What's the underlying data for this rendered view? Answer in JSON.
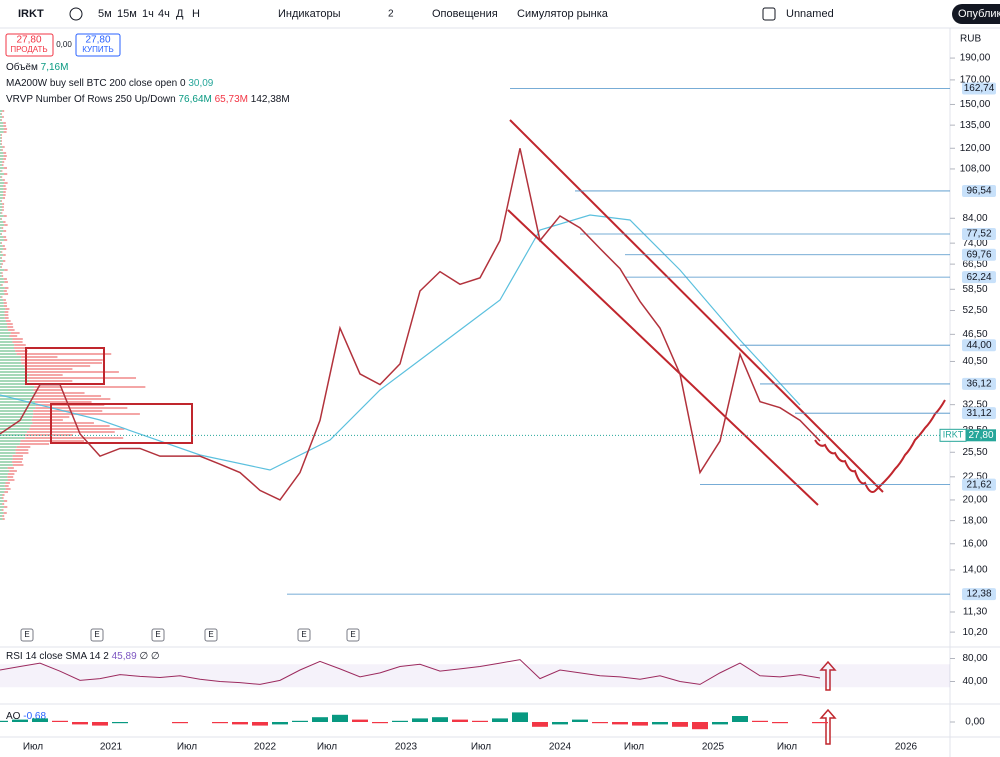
{
  "toolbar": {
    "symbol": "IRKT",
    "intervals": [
      "5м",
      "15м",
      "1ч",
      "4ч",
      "Д",
      "Н"
    ],
    "indicators": "Индикаторы",
    "layout_count": "2",
    "alerts": "Оповещения",
    "replay": "Симулятор рынка",
    "layout_name": "Unnamed",
    "publish": "Опублико"
  },
  "order_panel": {
    "sell_price": "27,80",
    "sell_label": "ПРОДАТЬ",
    "spread": "0,00",
    "buy_price": "27,80",
    "buy_label": "КУПИТЬ"
  },
  "legends": {
    "volume_name": "Объём",
    "volume_value": "7,16M",
    "ma_name": "MA200W buy sell BTC 200 close open 0",
    "ma_value": "30,09",
    "vrvp_name": "VRVP Number Of Rows 250 Up/Down",
    "vrvp_up": "76,64M",
    "vrvp_down": "65,73M",
    "vrvp_total": "142,38M"
  },
  "chart_data": {
    "type": "line",
    "currency": "RUB",
    "log_scale": true,
    "color": "#b2323c",
    "ylim": [
      10,
      200
    ],
    "yticks": [
      {
        "value": 190,
        "label": "190,00"
      },
      {
        "value": 170,
        "label": "170,00"
      },
      {
        "value": 150,
        "label": "150,00"
      },
      {
        "value": 135,
        "label": "135,00"
      },
      {
        "value": 120,
        "label": "120,00"
      },
      {
        "value": 108,
        "label": "108,00"
      },
      {
        "value": 84,
        "label": "84,00"
      },
      {
        "value": 74,
        "label": "74,00"
      },
      {
        "value": 66.5,
        "label": "66,50"
      },
      {
        "value": 58.5,
        "label": "58,50"
      },
      {
        "value": 52.5,
        "label": "52,50"
      },
      {
        "value": 46.5,
        "label": "46,50"
      },
      {
        "value": 40.5,
        "label": "40,50"
      },
      {
        "value": 32.5,
        "label": "32,50"
      },
      {
        "value": 28.5,
        "label": "28,50"
      },
      {
        "value": 25.5,
        "label": "25,50"
      },
      {
        "value": 22.5,
        "label": "22,50"
      },
      {
        "value": 20,
        "label": "20,00"
      },
      {
        "value": 18,
        "label": "18,00"
      },
      {
        "value": 16,
        "label": "16,00"
      },
      {
        "value": 14,
        "label": "14,00"
      },
      {
        "value": 11.3,
        "label": "11,30"
      },
      {
        "value": 10.2,
        "label": "10,20"
      }
    ],
    "price_levels": [
      {
        "value": 162.74,
        "label": "162,74"
      },
      {
        "value": 96.54,
        "label": "96,54"
      },
      {
        "value": 77.52,
        "label": "77,52"
      },
      {
        "value": 69.76,
        "label": "69,76"
      },
      {
        "value": 62.24,
        "label": "62,24"
      },
      {
        "value": 44,
        "label": "44,00"
      },
      {
        "value": 36.12,
        "label": "36,12"
      },
      {
        "value": 31.12,
        "label": "31,12"
      },
      {
        "value": 21.62,
        "label": "21,62"
      },
      {
        "value": 12.38,
        "label": "12,38"
      }
    ],
    "last_price": {
      "value": 27.8,
      "label": "27,80",
      "symbol": "IRKT"
    },
    "values": [
      28,
      30,
      36,
      36,
      28,
      25,
      26,
      26,
      25,
      25,
      25,
      24,
      23,
      21,
      20,
      23,
      30,
      48,
      38,
      36,
      40,
      58,
      64,
      60,
      62,
      75,
      120,
      75,
      85,
      80,
      72,
      65,
      55,
      48,
      38,
      23,
      27,
      42,
      33,
      32,
      30,
      27
    ],
    "time_axis": [
      "Июл",
      "2021",
      "Июл",
      "2022",
      "Июл",
      "2023",
      "Июл",
      "2024",
      "Июл",
      "2025",
      "Июл",
      "2026"
    ],
    "events": [
      "E",
      "E",
      "E",
      "E",
      "E",
      "E"
    ]
  },
  "rsi": {
    "name": "RSI 14 close SMA 14 2",
    "value": "45,89",
    "extra": "∅ ∅",
    "ylim": [
      20,
      100
    ],
    "yticks": [
      {
        "value": 80,
        "label": "80,00"
      },
      {
        "value": 40,
        "label": "40,00"
      }
    ],
    "values": [
      60,
      66,
      72,
      58,
      42,
      45,
      52,
      49,
      47,
      50,
      44,
      40,
      38,
      35,
      42,
      60,
      75,
      62,
      48,
      55,
      66,
      70,
      58,
      62,
      66,
      72,
      78,
      45,
      60,
      55,
      50,
      48,
      44,
      50,
      40,
      35,
      55,
      72,
      50,
      48,
      52,
      46
    ]
  },
  "ao": {
    "name": "AO",
    "value": "-0,68",
    "ylim": [
      -10,
      10
    ],
    "yticks": [
      {
        "value": 0,
        "label": "0,00"
      }
    ],
    "values": [
      1,
      2,
      3,
      1,
      -2,
      -3,
      -1,
      0,
      0,
      -1,
      0,
      -1,
      -2,
      -3,
      -2,
      1,
      4,
      6,
      2,
      -1,
      1,
      3,
      4,
      2,
      1,
      3,
      8,
      -4,
      -2,
      2,
      -1,
      -2,
      -3,
      -2,
      -4,
      -6,
      -2,
      5,
      1,
      -1,
      0,
      -1
    ]
  }
}
